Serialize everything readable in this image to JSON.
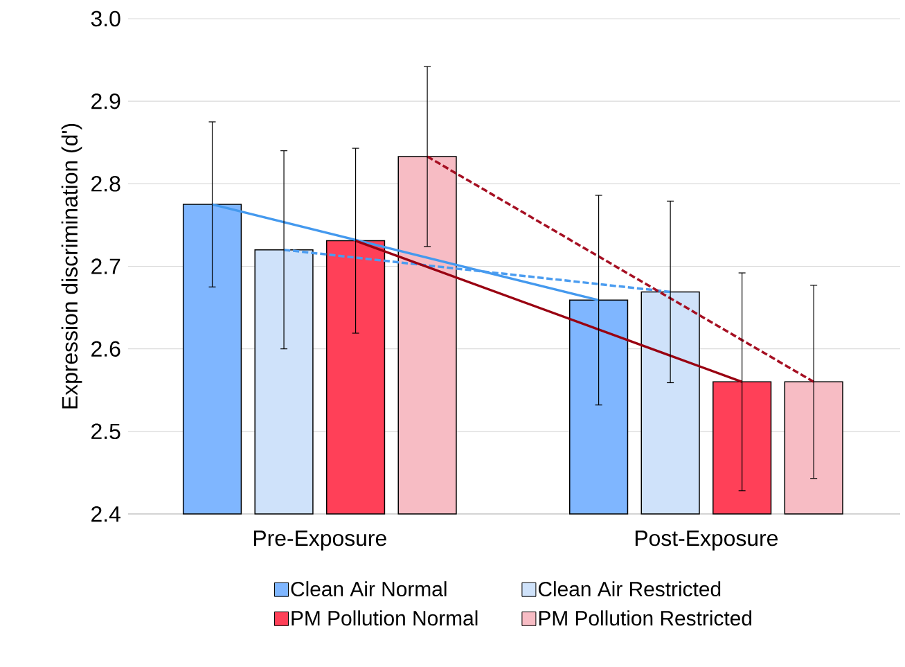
{
  "chart_data": {
    "type": "bar",
    "ylabel": "Expression discrimination (d')",
    "categories": [
      "Pre-Exposure",
      "Post-Exposure"
    ],
    "ylim": [
      2.4,
      3.0
    ],
    "yticks": [
      2.4,
      2.5,
      2.6,
      2.7,
      2.8,
      2.9,
      {
        "value": 3.0,
        "label": "3.0"
      }
    ],
    "grid": "y",
    "legend": "bottom",
    "series": [
      {
        "name": "Clean Air Normal",
        "color": "#7fb6ff",
        "values": [
          2.775,
          2.659
        ],
        "errors": [
          0.1,
          0.127
        ]
      },
      {
        "name": "Clean Air Restricted",
        "color": "#cfe2fa",
        "values": [
          2.72,
          2.669
        ],
        "errors": [
          0.12,
          0.11
        ]
      },
      {
        "name": "PM Pollution Normal",
        "color": "#ff4058",
        "values": [
          2.731,
          2.56
        ],
        "errors": [
          0.112,
          0.132
        ]
      },
      {
        "name": "PM Pollution Restricted",
        "color": "#f7bcc4",
        "values": [
          2.833,
          2.56
        ],
        "errors": [
          0.109,
          0.117
        ]
      },
      {
        "type": "line",
        "color": "#4499ee",
        "line_style": "solid",
        "values": [
          2.775,
          2.659
        ]
      },
      {
        "type": "line",
        "color": "#4a9cf0",
        "line_style": "dashed",
        "values": [
          2.72,
          2.669
        ]
      },
      {
        "type": "line",
        "color": "#990011",
        "line_style": "solid",
        "values": [
          2.731,
          2.56
        ]
      },
      {
        "type": "line",
        "color": "#a50f22",
        "line_style": "dashed",
        "values": [
          2.833,
          2.56
        ]
      }
    ]
  }
}
